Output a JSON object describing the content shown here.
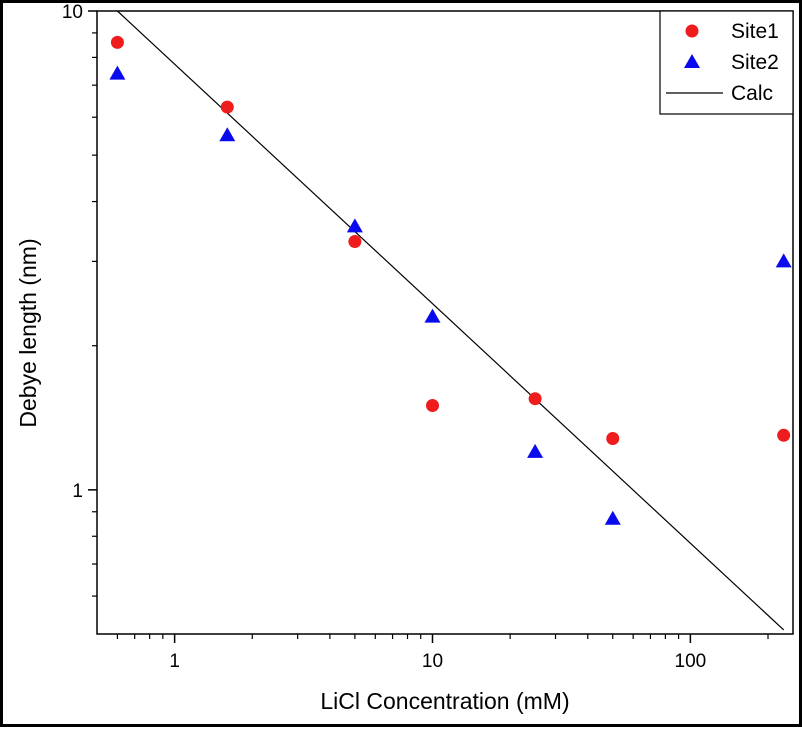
{
  "chart_data": {
    "type": "scatter",
    "xscale": "log",
    "yscale": "log",
    "xlabel": "LiCl Concentration (mM)",
    "ylabel": "Debye length (nm)",
    "xlim": [
      0.5,
      250
    ],
    "ylim": [
      0.5,
      10
    ],
    "xticks": [
      {
        "value": 1,
        "label": "1"
      },
      {
        "value": 10,
        "label": "10"
      },
      {
        "value": 100,
        "label": "100"
      }
    ],
    "yticks": [
      {
        "value": 1,
        "label": "1"
      },
      {
        "value": 10,
        "label": "10"
      }
    ],
    "legend_position": "top-right",
    "series": [
      {
        "name": "Site1",
        "marker": "circle",
        "color": "#ee1c1c",
        "points": [
          {
            "x": 0.6,
            "y": 8.6
          },
          {
            "x": 1.6,
            "y": 6.3
          },
          {
            "x": 5,
            "y": 3.3
          },
          {
            "x": 10,
            "y": 1.5
          },
          {
            "x": 25,
            "y": 1.55
          },
          {
            "x": 50,
            "y": 1.28
          },
          {
            "x": 230,
            "y": 1.3
          }
        ]
      },
      {
        "name": "Site2",
        "marker": "triangle",
        "color": "#0a0aee",
        "points": [
          {
            "x": 0.6,
            "y": 7.4
          },
          {
            "x": 1.6,
            "y": 5.5
          },
          {
            "x": 5,
            "y": 3.55
          },
          {
            "x": 10,
            "y": 2.3
          },
          {
            "x": 25,
            "y": 1.2
          },
          {
            "x": 50,
            "y": 0.87
          },
          {
            "x": 230,
            "y": 3.0
          }
        ]
      },
      {
        "name": "Calc",
        "marker": "line",
        "color": "#000000",
        "points": [
          {
            "x": 0.6,
            "y": 10.0
          },
          {
            "x": 230,
            "y": 0.51
          }
        ]
      }
    ]
  }
}
